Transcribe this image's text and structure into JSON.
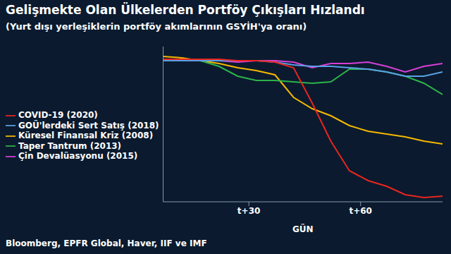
{
  "chart_data": {
    "type": "line",
    "title": "Gelişmekte Olan Ülkelerden Portföy Çıkışları Hızlandı",
    "subtitle": "(Yurt dışı yerleşiklerin portföy akımlarının GSYİH'ya oranı)",
    "source": "Bloomberg, EPFR Global, Haver, IIF ve IMF",
    "x_label": "GÜN",
    "x": [
      7,
      12,
      17,
      22,
      27,
      32,
      37,
      42,
      47,
      52,
      57,
      62,
      67,
      72,
      77,
      82
    ],
    "xlim": [
      7,
      82
    ],
    "xticks": [
      {
        "value": 30,
        "label": "t+30"
      },
      {
        "value": 60,
        "label": "t+60"
      }
    ],
    "ylim": [
      -1,
      0.1
    ],
    "yticks": [],
    "grid": false,
    "tick_labels": "x",
    "legend": "left",
    "series": [
      {
        "name": "Küresel Finansal Kriz (2008)",
        "color": "#f5b800",
        "values": [
          0.03,
          0.02,
          0,
          -0.02,
          -0.05,
          -0.07,
          -0.1,
          -0.26,
          -0.34,
          -0.39,
          -0.46,
          -0.5,
          -0.52,
          -0.54,
          -0.57,
          -0.59
        ]
      },
      {
        "name": "Taper Tantrum (2013)",
        "color": "#2db34a",
        "values": [
          0,
          0,
          0,
          -0.04,
          -0.11,
          -0.14,
          -0.14,
          -0.15,
          -0.16,
          -0.15,
          -0.06,
          -0.06,
          -0.08,
          -0.11,
          -0.16,
          -0.24
        ]
      },
      {
        "name": "Çin Devalüasyonu (2015)",
        "color": "#d63fd6",
        "values": [
          0,
          0,
          0,
          0,
          -0.01,
          0,
          0,
          -0.01,
          -0.05,
          -0.02,
          -0.02,
          -0.01,
          -0.04,
          -0.08,
          -0.04,
          -0.02
        ]
      },
      {
        "name": "GOÜ'lerdeki Sert Satış (2018)",
        "color": "#5aa0e6",
        "values": [
          0,
          0,
          0,
          0,
          0,
          0,
          -0.01,
          -0.03,
          -0.04,
          -0.04,
          -0.05,
          -0.06,
          -0.08,
          -0.11,
          -0.11,
          -0.08
        ]
      },
      {
        "name": "COVID-19 (2020)",
        "color": "#e8251f",
        "values": [
          0.01,
          0.01,
          0.01,
          0.01,
          0,
          0,
          -0.01,
          -0.05,
          -0.3,
          -0.57,
          -0.78,
          -0.85,
          -0.89,
          -0.95,
          -0.97,
          -0.96
        ]
      }
    ]
  }
}
